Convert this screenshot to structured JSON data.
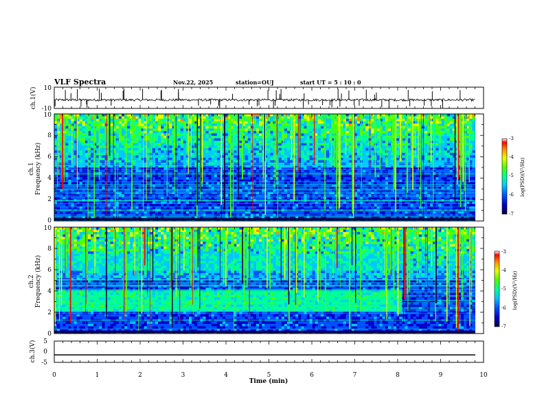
{
  "header": {
    "title": "VLF Spectra",
    "date": "Nov.22, 2025",
    "station": "station=OUJ",
    "start": "start  UT =   5 : 10 : 0"
  },
  "colors": {
    "trace": "#000000",
    "colormap": [
      "#000040",
      "#0000c8",
      "#0050ff",
      "#00c8ff",
      "#00ff96",
      "#50ff00",
      "#e6ff00",
      "#ff8c00",
      "#ff0000",
      "#ffffff"
    ]
  },
  "chart_data": [
    {
      "type": "line",
      "panel": "ch1-waveform",
      "ylabel": "ch.1(V)",
      "ylim": [
        -10,
        10
      ],
      "ytick_labels": [
        "10",
        "-10"
      ],
      "xlim": [
        0,
        10
      ],
      "note": "broadband waveform, mostly near -2 V with impulsive spikes"
    },
    {
      "type": "heatmap",
      "panel": "ch1-spectrogram",
      "ylabel_line1": "ch.1",
      "ylabel_line2": "Frequency (kHz)",
      "ylim": [
        0,
        10
      ],
      "ytick_labels": [
        "0",
        "2",
        "4",
        "6",
        "8",
        "10"
      ],
      "xlim": [
        0,
        9.8
      ],
      "colorbar_label": "log(PSD)(V²/Hz)",
      "colorbar_range": [
        -7,
        -3
      ],
      "colorbar_ticks": [
        "-3",
        "-4",
        "-5",
        "-6",
        "-7"
      ]
    },
    {
      "type": "heatmap",
      "panel": "ch2-spectrogram",
      "ylabel_line1": "ch.2",
      "ylabel_line2": "Frequency (kHz)",
      "ylim": [
        0,
        10
      ],
      "ytick_labels": [
        "0",
        "2",
        "4",
        "6",
        "8",
        "10"
      ],
      "xlim": [
        0,
        9.8
      ],
      "colorbar_label": "log(PSD)(V²/Hz)",
      "colorbar_range": [
        -7,
        -3
      ],
      "colorbar_ticks": [
        "-3",
        "-4",
        "-5",
        "-6",
        "-7"
      ],
      "note": "enhanced 2–4 kHz and 6–8 kHz emission bands until ~8.1 min"
    },
    {
      "type": "line",
      "panel": "ch3-waveform",
      "ylabel": "ch.3(V)",
      "ylim": [
        -5,
        5
      ],
      "ytick_labels": [
        "5",
        "0",
        "-5"
      ],
      "xlim": [
        0,
        10
      ],
      "values_const": -1.5
    }
  ],
  "xaxis": {
    "label": "Time (min)",
    "ticks": [
      "0",
      "1",
      "2",
      "3",
      "4",
      "5",
      "6",
      "7",
      "8",
      "9",
      "10"
    ]
  }
}
